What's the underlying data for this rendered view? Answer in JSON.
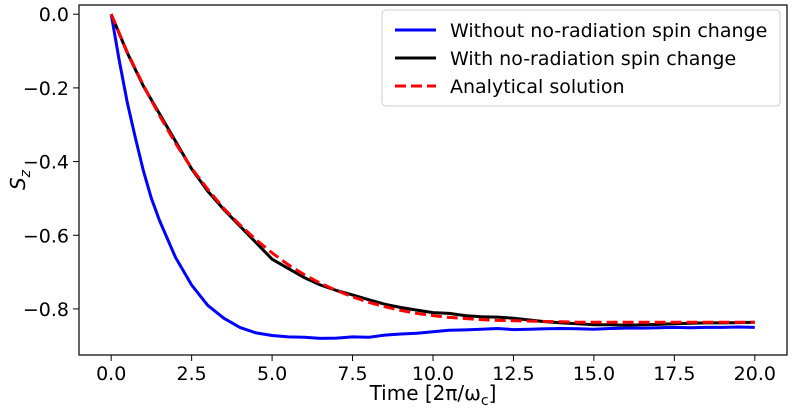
{
  "chart_data": {
    "type": "line",
    "xlabel": "Time [2π/ω",
    "xlabel_sub": "c",
    "xlabel_tail": "]",
    "ylabel": "S",
    "ylabel_sub": "z",
    "xlim": [
      -1.0,
      21.0
    ],
    "ylim": [
      -0.925,
      0.025
    ],
    "x_ticks": [
      0.0,
      2.5,
      5.0,
      7.5,
      10.0,
      12.5,
      15.0,
      17.5,
      20.0
    ],
    "x_tick_labels": [
      "0.0",
      "2.5",
      "5.0",
      "7.5",
      "10.0",
      "12.5",
      "15.0",
      "17.5",
      "20.0"
    ],
    "y_ticks": [
      0.0,
      -0.2,
      -0.4,
      -0.6,
      -0.8
    ],
    "y_tick_labels": [
      "0.0",
      "−0.2",
      "−0.4",
      "−0.6",
      "−0.8"
    ],
    "grid": false,
    "legend_position": "upper-right",
    "series": [
      {
        "name": "Without no-radiation spin change",
        "color": "#0000ff",
        "style": "solid",
        "x": [
          0,
          0.25,
          0.5,
          0.75,
          1.0,
          1.25,
          1.5,
          2.0,
          2.5,
          3.0,
          3.5,
          4.0,
          4.5,
          5.0,
          5.5,
          6.0,
          6.5,
          7.0,
          7.5,
          8.0,
          8.5,
          9.0,
          9.5,
          10.0,
          10.5,
          11.0,
          11.5,
          12.0,
          12.5,
          13.0,
          13.5,
          14.0,
          14.5,
          15.0,
          15.5,
          16.0,
          16.5,
          17.0,
          17.5,
          18.0,
          18.5,
          19.0,
          19.5,
          20.0
        ],
        "y": [
          0.0,
          -0.125,
          -0.24,
          -0.335,
          -0.425,
          -0.5,
          -0.56,
          -0.66,
          -0.735,
          -0.79,
          -0.825,
          -0.85,
          -0.865,
          -0.872,
          -0.876,
          -0.877,
          -0.88,
          -0.879,
          -0.876,
          -0.877,
          -0.871,
          -0.868,
          -0.866,
          -0.862,
          -0.858,
          -0.857,
          -0.855,
          -0.853,
          -0.856,
          -0.855,
          -0.854,
          -0.853,
          -0.854,
          -0.855,
          -0.853,
          -0.852,
          -0.852,
          -0.851,
          -0.85,
          -0.851,
          -0.85,
          -0.85,
          -0.849,
          -0.85
        ]
      },
      {
        "name": "With no-radiation spin change",
        "color": "#000000",
        "style": "solid",
        "x": [
          0,
          0.5,
          1.0,
          1.5,
          2.0,
          2.5,
          3.0,
          3.5,
          4.0,
          4.5,
          5.0,
          5.5,
          6.0,
          6.5,
          7.0,
          7.5,
          8.0,
          8.5,
          9.0,
          9.5,
          10.0,
          10.5,
          11.0,
          11.5,
          12.0,
          12.5,
          13.0,
          13.5,
          14.0,
          14.5,
          15.0,
          15.5,
          16.0,
          16.5,
          17.0,
          17.5,
          18.0,
          18.5,
          19.0,
          19.5,
          20.0
        ],
        "y": [
          0.0,
          -0.105,
          -0.195,
          -0.27,
          -0.345,
          -0.42,
          -0.48,
          -0.53,
          -0.575,
          -0.62,
          -0.665,
          -0.69,
          -0.715,
          -0.735,
          -0.75,
          -0.762,
          -0.775,
          -0.787,
          -0.796,
          -0.803,
          -0.81,
          -0.812,
          -0.818,
          -0.821,
          -0.822,
          -0.825,
          -0.83,
          -0.835,
          -0.838,
          -0.84,
          -0.843,
          -0.843,
          -0.844,
          -0.843,
          -0.842,
          -0.84,
          -0.839,
          -0.838,
          -0.838,
          -0.837,
          -0.836
        ]
      },
      {
        "name": "Analytical solution",
        "color": "#ff0000",
        "style": "dashed",
        "x": [
          0,
          0.5,
          1.0,
          1.5,
          2.0,
          2.5,
          3.0,
          3.5,
          4.0,
          4.5,
          5.0,
          5.5,
          6.0,
          6.5,
          7.0,
          7.5,
          8.0,
          8.5,
          9.0,
          9.5,
          10.0,
          10.5,
          11.0,
          11.5,
          12.0,
          12.5,
          13.0,
          13.5,
          14.0,
          14.5,
          15.0,
          15.5,
          16.0,
          16.5,
          17.0,
          17.5,
          18.0,
          18.5,
          19.0,
          19.5,
          20.0
        ],
        "y": [
          0.0,
          -0.103,
          -0.193,
          -0.275,
          -0.35,
          -0.418,
          -0.475,
          -0.527,
          -0.572,
          -0.612,
          -0.648,
          -0.68,
          -0.707,
          -0.73,
          -0.75,
          -0.767,
          -0.782,
          -0.794,
          -0.804,
          -0.812,
          -0.818,
          -0.823,
          -0.826,
          -0.829,
          -0.831,
          -0.832,
          -0.833,
          -0.834,
          -0.835,
          -0.836,
          -0.836,
          -0.836,
          -0.836,
          -0.836,
          -0.836,
          -0.836,
          -0.836,
          -0.836,
          -0.836,
          -0.836,
          -0.836
        ]
      }
    ]
  }
}
